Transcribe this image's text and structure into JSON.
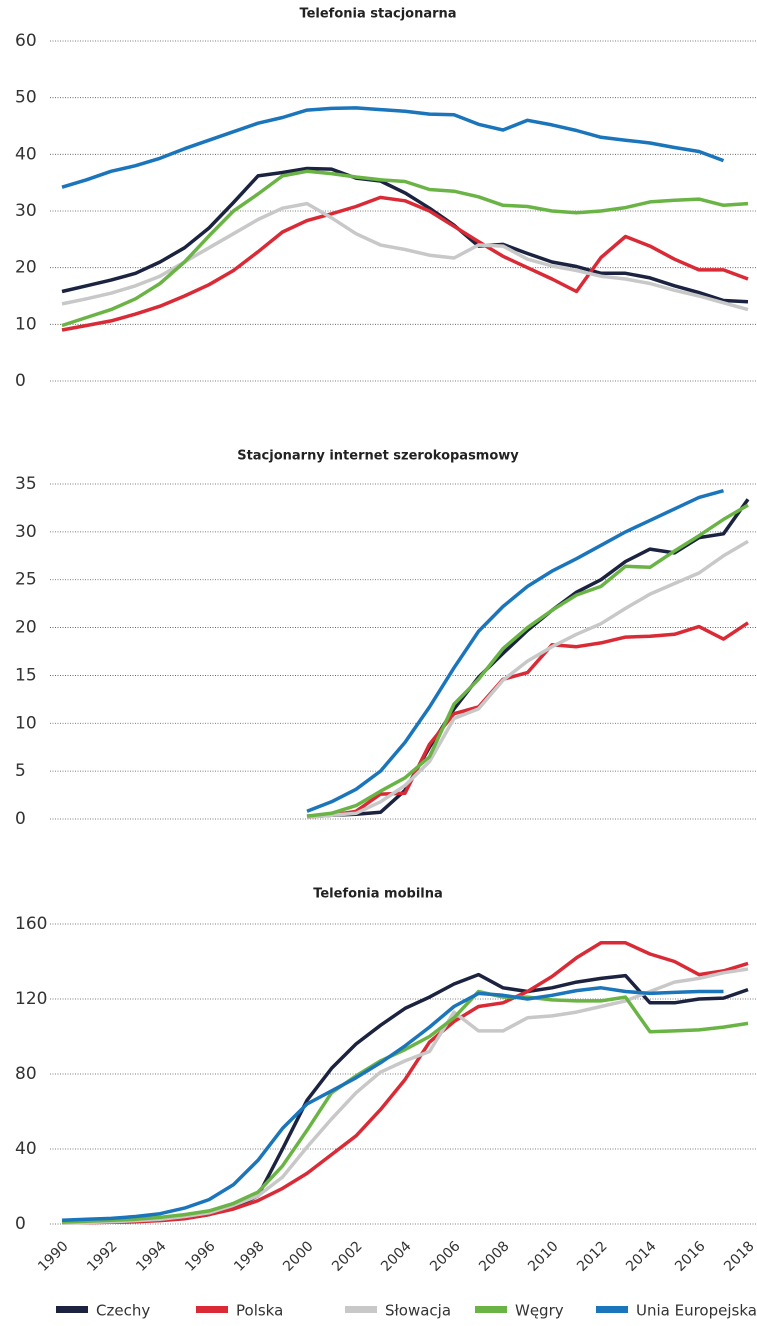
{
  "chart_data": [
    {
      "type": "line",
      "title": "Telefonia stacjonarna",
      "x": [
        1990,
        1991,
        1992,
        1993,
        1994,
        1995,
        1996,
        1997,
        1998,
        1999,
        2000,
        2001,
        2002,
        2003,
        2004,
        2005,
        2006,
        2007,
        2008,
        2009,
        2010,
        2011,
        2012,
        2013,
        2014,
        2015,
        2016,
        2017,
        2018
      ],
      "xlim": [
        1990,
        2018
      ],
      "ylim": [
        0,
        60
      ],
      "yticks": [
        0,
        10,
        20,
        30,
        40,
        50,
        60
      ],
      "grid": true,
      "series": [
        {
          "color": "#1b2340",
          "values": [
            15.8,
            16.8,
            17.8,
            19,
            21,
            23.5,
            27,
            31.5,
            36.2,
            36.8,
            37.5,
            37.4,
            35.8,
            35.3,
            33.2,
            30.5,
            27.5,
            23.8,
            24.1,
            22.5,
            21,
            20.2,
            19,
            19,
            18.2,
            16.8,
            15.6,
            14.2,
            14
          ]
        },
        {
          "color": "#d92a35",
          "values": [
            9,
            9.8,
            10.6,
            11.8,
            13.2,
            15,
            17,
            19.5,
            22.8,
            26.3,
            28.3,
            29.5,
            30.8,
            32.4,
            31.8,
            30,
            27.3,
            24.6,
            22,
            20,
            18,
            15.8,
            21.8,
            25.5,
            23.8,
            21.5,
            19.6,
            19.6,
            18
          ]
        },
        {
          "color": "#c8c8c8",
          "values": [
            13.6,
            14.5,
            15.5,
            16.8,
            18.5,
            21,
            23.5,
            26,
            28.5,
            30.5,
            31.3,
            28.8,
            26,
            24,
            23.2,
            22.2,
            21.7,
            24,
            23.8,
            21.5,
            20.3,
            19.5,
            18.5,
            18,
            17.2,
            16,
            15,
            13.8,
            12.6
          ]
        },
        {
          "color": "#6ab445",
          "values": [
            9.8,
            11.2,
            12.6,
            14.5,
            17.2,
            21,
            25.6,
            30,
            33,
            36.2,
            37,
            36.6,
            36,
            35.5,
            35.2,
            33.8,
            33.5,
            32.5,
            31,
            30.8,
            30,
            29.7,
            30,
            30.6,
            31.6,
            31.9,
            32.1,
            31,
            31.3
          ]
        },
        {
          "color": "#1a75bb",
          "values": [
            34.2,
            35.5,
            37,
            38,
            39.3,
            41,
            42.5,
            44,
            45.5,
            46.5,
            47.8,
            48.1,
            48.2,
            47.9,
            47.6,
            47.1,
            47,
            45.3,
            44.3,
            46,
            45.2,
            44.2,
            43,
            42.5,
            42,
            41.2,
            40.5,
            38.9,
            null
          ]
        }
      ]
    },
    {
      "type": "line",
      "title": "Stacjonarny internet szerokopasmowy",
      "x": [
        1990,
        1991,
        1992,
        1993,
        1994,
        1995,
        1996,
        1997,
        1998,
        1999,
        2000,
        2001,
        2002,
        2003,
        2004,
        2005,
        2006,
        2007,
        2008,
        2009,
        2010,
        2011,
        2012,
        2013,
        2014,
        2015,
        2016,
        2017,
        2018
      ],
      "xlim": [
        1990,
        2018
      ],
      "ylim": [
        0,
        35
      ],
      "yticks": [
        0,
        5,
        10,
        15,
        20,
        25,
        30,
        35
      ],
      "grid": true,
      "series": [
        {
          "color": "#1b2340",
          "values": [
            null,
            null,
            null,
            null,
            null,
            null,
            null,
            null,
            null,
            null,
            0.3,
            0.4,
            0.5,
            0.7,
            3,
            7.5,
            11.5,
            14.8,
            17.3,
            19.7,
            21.8,
            23.7,
            25,
            26.9,
            28.2,
            27.8,
            29.4,
            29.8,
            33.4
          ]
        },
        {
          "color": "#d92a35",
          "values": [
            null,
            null,
            null,
            null,
            null,
            null,
            null,
            null,
            null,
            null,
            0.2,
            0.4,
            0.8,
            2.6,
            2.7,
            7.8,
            11,
            11.7,
            14.6,
            15.3,
            18.2,
            18,
            18.4,
            19,
            19.1,
            19.3,
            20.1,
            18.8,
            20.5
          ]
        },
        {
          "color": "#c8c8c8",
          "values": [
            null,
            null,
            null,
            null,
            null,
            null,
            null,
            null,
            null,
            null,
            0.2,
            0.4,
            0.6,
            1.8,
            3.5,
            6,
            10.5,
            11.5,
            14.5,
            16.5,
            18,
            19.3,
            20.4,
            22,
            23.5,
            24.6,
            25.7,
            27.5,
            29
          ]
        },
        {
          "color": "#6ab445",
          "values": [
            null,
            null,
            null,
            null,
            null,
            null,
            null,
            null,
            null,
            null,
            0.3,
            0.6,
            1.4,
            2.9,
            4.3,
            6.5,
            12,
            14.6,
            17.8,
            20,
            21.8,
            23.4,
            24.3,
            26.4,
            26.3,
            28,
            29.6,
            31.3,
            32.8
          ]
        },
        {
          "color": "#1a75bb",
          "values": [
            null,
            null,
            null,
            null,
            null,
            null,
            null,
            null,
            null,
            null,
            0.8,
            1.8,
            3.1,
            5,
            8,
            11.7,
            15.8,
            19.6,
            22.2,
            24.3,
            25.9,
            27.2,
            28.6,
            30,
            31.2,
            32.4,
            33.6,
            34.3,
            null
          ]
        }
      ]
    },
    {
      "type": "line",
      "title": "Telefonia mobilna",
      "x": [
        1990,
        1991,
        1992,
        1993,
        1994,
        1995,
        1996,
        1997,
        1998,
        1999,
        2000,
        2001,
        2002,
        2003,
        2004,
        2005,
        2006,
        2007,
        2008,
        2009,
        2010,
        2011,
        2012,
        2013,
        2014,
        2015,
        2016,
        2017,
        2018
      ],
      "xlim": [
        1990,
        2018
      ],
      "xticks": [
        1990,
        1992,
        1994,
        1996,
        1998,
        2000,
        2002,
        2004,
        2006,
        2008,
        2010,
        2012,
        2014,
        2016,
        2018
      ],
      "ylim": [
        0,
        160
      ],
      "yticks": [
        0,
        40,
        80,
        120,
        160
      ],
      "grid": true,
      "legend": "bottom",
      "series": [
        {
          "name": "Czechy",
          "color": "#1b2340",
          "values": [
            1.5,
            1.5,
            1.6,
            1.8,
            2,
            3,
            5,
            9,
            15,
            40,
            66,
            83,
            96,
            106,
            115,
            121,
            128,
            133,
            126,
            124,
            126,
            129,
            131,
            132.5,
            118,
            118,
            120,
            120.5,
            125
          ]
        },
        {
          "name": "Polska",
          "color": "#d92a35",
          "values": [
            0.6,
            0.7,
            0.9,
            1.2,
            1.8,
            2.8,
            5,
            8,
            12.5,
            19,
            27,
            37,
            47,
            61,
            77,
            97,
            108,
            116,
            118,
            124,
            132,
            142,
            150,
            150,
            144,
            140,
            133,
            135,
            139
          ]
        },
        {
          "name": "Słowacja",
          "color": "#c8c8c8",
          "values": [
            0.5,
            0.8,
            1.2,
            1.8,
            2.5,
            4,
            6,
            10,
            15,
            25,
            41,
            56,
            70,
            81,
            87,
            92,
            113,
            103,
            103,
            110,
            111,
            113,
            116,
            119,
            124,
            129,
            131,
            134,
            136
          ]
        },
        {
          "name": "Węgry",
          "color": "#6ab445",
          "values": [
            1,
            1.5,
            2,
            2.5,
            3.5,
            5,
            7,
            11,
            17,
            31,
            50,
            70,
            79,
            87,
            93,
            100,
            110,
            124,
            121,
            121,
            119.5,
            119,
            119,
            121,
            102.5,
            103,
            103.5,
            105,
            107
          ]
        },
        {
          "name": "Unia Europejska",
          "color": "#1a75bb",
          "values": [
            2,
            2.5,
            3,
            4,
            5.5,
            8.5,
            13,
            21,
            34,
            51,
            64,
            71,
            78,
            86,
            95,
            105,
            116,
            123,
            122,
            120,
            122,
            124.5,
            126,
            124,
            123,
            123.5,
            124,
            124,
            null
          ]
        }
      ]
    }
  ]
}
